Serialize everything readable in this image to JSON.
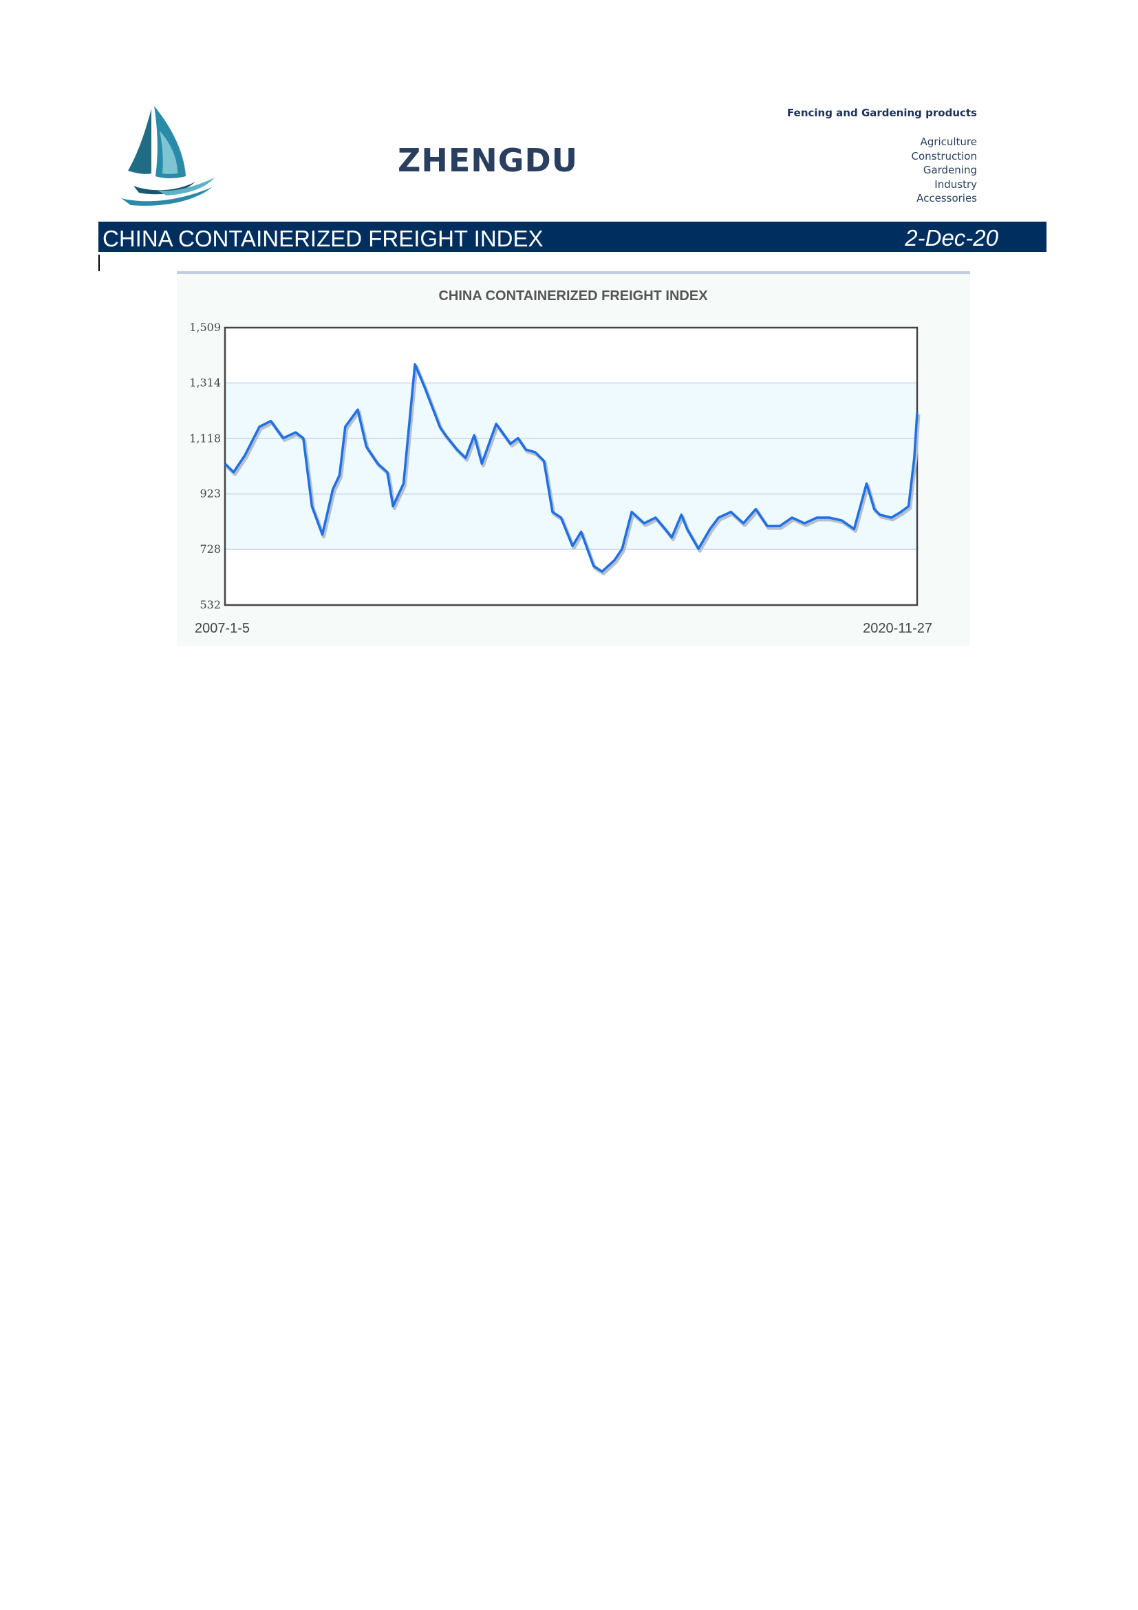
{
  "header": {
    "brand": "ZHENGDU",
    "tagline": "Fencing and Gardening products",
    "categories": [
      "Agriculture",
      "Construction",
      "Gardening",
      "Industry",
      "Accessories"
    ],
    "logo_icon": "sailboat-logo-icon"
  },
  "banner": {
    "title": "CHINA CONTAINERIZED FREIGHT INDEX",
    "date": "2-Dec-20",
    "background": "#002f5f"
  },
  "chart_data": {
    "type": "line",
    "title": "CHINA CONTAINERIZED FREIGHT INDEX",
    "xlabel": "",
    "ylabel": "",
    "x_start_label": "2007-1-5",
    "x_end_label": "2020-11-27",
    "x_range": [
      "2007-01-05",
      "2020-11-27"
    ],
    "ylim": [
      532,
      1509
    ],
    "yticks": [
      532,
      728,
      923,
      1118,
      1314,
      1509
    ],
    "ytick_labels": [
      "532",
      "728",
      "923",
      "1,118",
      "1,314",
      "1,509"
    ],
    "grid": true,
    "line_color": "#1f6fe5",
    "band_color": "#eefafe",
    "series": [
      {
        "x": [
          "2007-01-05",
          "2007-03-09",
          "2007-06-01",
          "2007-09-14",
          "2007-12-07",
          "2008-03-07",
          "2008-06-06",
          "2008-08-01",
          "2008-10-03",
          "2008-12-19",
          "2009-03-06",
          "2009-04-24",
          "2009-06-05",
          "2009-09-04",
          "2009-11-06",
          "2010-01-29",
          "2010-04-09",
          "2010-05-21",
          "2010-08-06",
          "2010-10-29",
          "2011-01-07",
          "2011-04-29",
          "2011-06-10",
          "2011-09-02",
          "2011-11-04",
          "2012-01-06",
          "2012-03-02",
          "2012-06-15",
          "2012-09-28",
          "2012-11-23",
          "2013-01-18",
          "2013-03-29",
          "2013-05-31",
          "2013-08-02",
          "2013-10-04",
          "2013-12-27",
          "2014-02-28",
          "2014-05-30",
          "2014-08-01",
          "2014-10-31",
          "2014-12-26",
          "2015-03-06",
          "2015-06-05",
          "2015-08-28",
          "2015-11-06",
          "2015-12-25",
          "2016-03-04",
          "2016-04-15",
          "2016-07-08",
          "2016-09-30",
          "2016-12-02",
          "2017-03-03",
          "2017-06-02",
          "2017-09-01",
          "2017-11-24",
          "2018-02-23",
          "2018-05-25",
          "2018-08-24",
          "2018-11-23",
          "2019-02-22",
          "2019-05-24",
          "2019-08-23",
          "2019-11-22",
          "2020-01-17",
          "2020-02-28",
          "2020-05-22",
          "2020-07-31",
          "2020-09-25",
          "2020-11-06",
          "2020-11-27"
        ],
        "y": [
          1030,
          1000,
          1060,
          1160,
          1180,
          1120,
          1140,
          1120,
          880,
          780,
          940,
          990,
          1160,
          1220,
          1090,
          1030,
          1000,
          880,
          960,
          1380,
          1300,
          1160,
          1130,
          1080,
          1050,
          1130,
          1030,
          1170,
          1100,
          1120,
          1080,
          1070,
          1040,
          860,
          840,
          740,
          790,
          670,
          650,
          690,
          730,
          860,
          820,
          840,
          800,
          770,
          850,
          800,
          730,
          800,
          840,
          860,
          820,
          870,
          810,
          810,
          840,
          820,
          840,
          840,
          830,
          800,
          960,
          870,
          850,
          840,
          860,
          880,
          1050,
          1210
        ]
      }
    ]
  }
}
